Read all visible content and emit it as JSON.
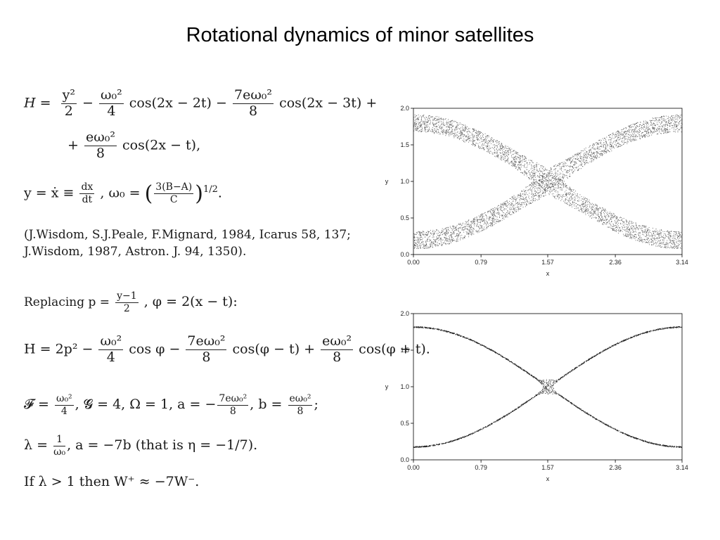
{
  "slide": {
    "title": "Rotational dynamics of minor satellites"
  },
  "equations": {
    "H_line1": {
      "lhs": "H =",
      "t1_num": "y²",
      "t1_den": "2",
      "op1": "−",
      "t2_num": "ω₀²",
      "t2_den": "4",
      "t2_rest": "cos(2x − 2t) −",
      "t3_num": "7eω₀²",
      "t3_den": "8",
      "t3_rest": "cos(2x − 3t) +"
    },
    "H_line2": {
      "lead": "+",
      "num": "eω₀²",
      "den": "8",
      "rest": "cos(2x − t),"
    },
    "y_def": {
      "lhs": "y = ẋ ≡",
      "num1": "dx",
      "den1": "dt",
      "mid": ", ω₀ =",
      "open": "(",
      "num2": "3(B−A)",
      "den2": "C",
      "close": ")",
      "exp": "1/2",
      "end": "."
    },
    "citation": {
      "line1": "(J.Wisdom, S.J.Peale, F.Mignard, 1984, Icarus 58, 137;",
      "line2": "J.Wisdom, 1987, Astron. J. 94, 1350)."
    },
    "replacing": {
      "text": "Replacing p =",
      "num": "y−1",
      "den": "2",
      "rest": ", φ = 2(x − t):"
    },
    "H_new": {
      "lhs": "H = 2p² −",
      "n1": "ω₀²",
      "d1": "4",
      "m1": "cos φ −",
      "n2": "7eω₀²",
      "d2": "8",
      "m2": "cos(φ − t) +",
      "n3": "eω₀²",
      "d3": "8",
      "m3": "cos(φ + t)."
    },
    "params": {
      "F": "𝓕 =",
      "fn": "ω₀²",
      "fd": "4",
      "G": ", 𝓖 = 4, Ω = 1, a = −",
      "an": "7eω₀²",
      "ad": "8",
      "b": ", b =",
      "bn": "eω₀²",
      "bd": "8",
      "end": ";"
    },
    "lambda": {
      "lhs": "λ =",
      "n": "1",
      "d": "ω₀",
      "rest": ", a = −7b (that is η = −1/7)."
    },
    "condition": {
      "text": "If λ > 1 then W⁺ ≈ −7W⁻."
    }
  },
  "chart_data": [
    {
      "type": "scatter",
      "title": "",
      "xlabel": "x",
      "ylabel": "y",
      "xlim": [
        0.0,
        3.14
      ],
      "ylim": [
        0.0,
        2.0
      ],
      "xticks": [
        "0.00",
        "0.79",
        "1.57",
        "2.36",
        "3.14"
      ],
      "yticks": [
        "0.0",
        "0.5",
        "1.0",
        "1.5",
        "2.0"
      ],
      "description_kind": "wide chaotic layer around the separatrix of the resonance",
      "series": [
        {
          "separatrix_upper_y_at_x0": 1.8,
          "separatrix_lower_y_at_x0": 0.2,
          "crossing": [
            1.57,
            1.0
          ],
          "layer_half_width": 0.12
        }
      ],
      "color": "#555555"
    },
    {
      "type": "scatter",
      "title": "",
      "xlabel": "x",
      "ylabel": "y",
      "xlim": [
        0.0,
        3.14
      ],
      "ylim": [
        0.0,
        2.0
      ],
      "xticks": [
        "0.00",
        "0.79",
        "1.57",
        "2.36",
        "3.14"
      ],
      "yticks": [
        "0.0",
        "0.5",
        "1.0",
        "1.5",
        "2.0"
      ],
      "description_kind": "thin separatrix layer with chaos concentrated near the saddle point",
      "series": [
        {
          "separatrix_upper_y_at_x0": 1.82,
          "separatrix_lower_y_at_x0": 0.2,
          "crossing": [
            1.57,
            1.0
          ],
          "layer_half_width": 0.008
        }
      ],
      "color": "#222222"
    }
  ]
}
